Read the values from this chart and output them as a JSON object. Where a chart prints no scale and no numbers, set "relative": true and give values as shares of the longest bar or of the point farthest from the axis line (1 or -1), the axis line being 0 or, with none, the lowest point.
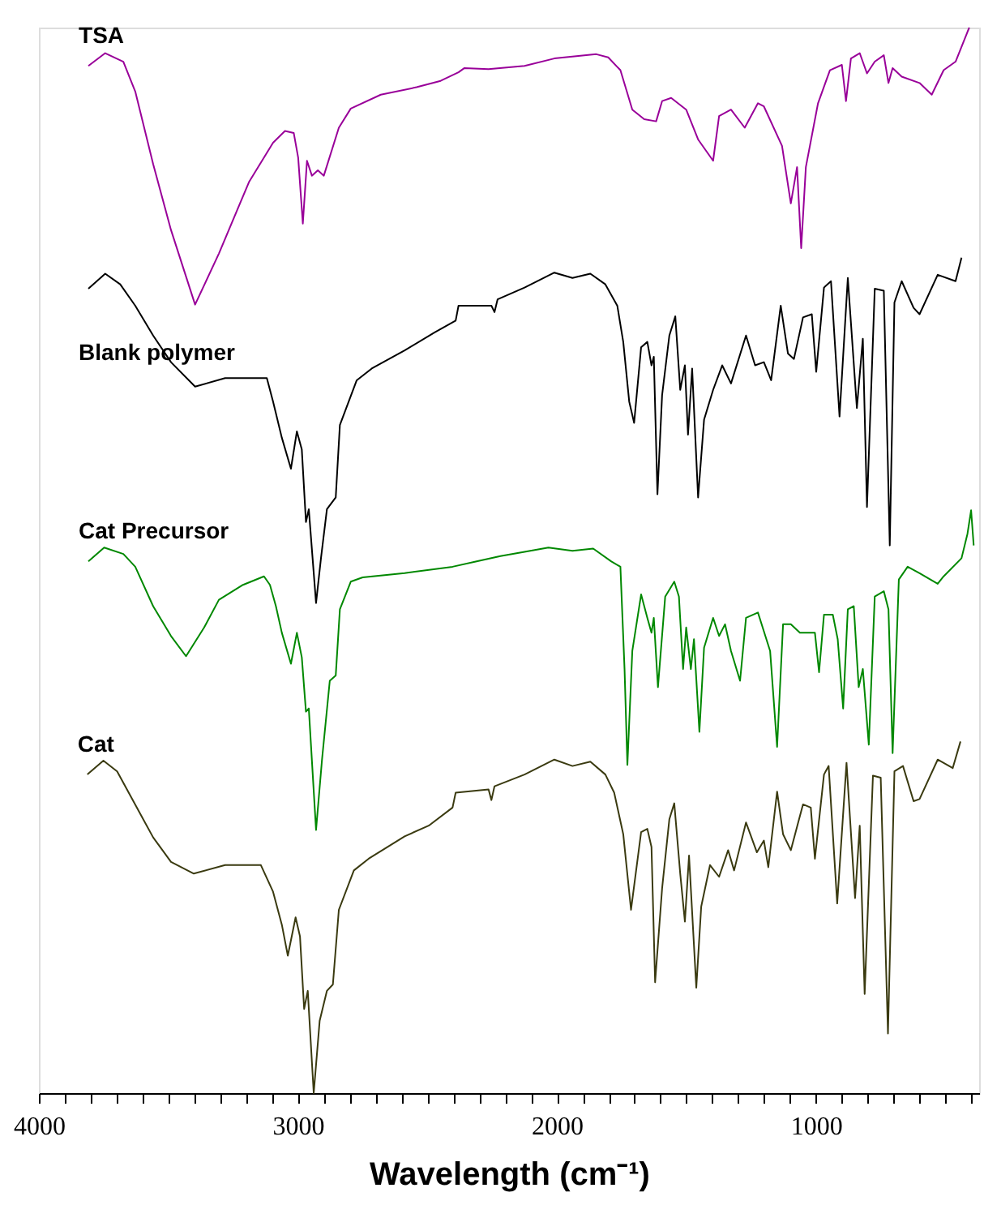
{
  "chart_data": {
    "type": "line",
    "relative": true,
    "xlabel": "Wavelength (cm⁻¹)",
    "xlim": [
      4000,
      370
    ],
    "xticks": [
      4000,
      {
        "value": 3900,
        "label": null
      },
      {
        "value": 3800,
        "label": null
      },
      {
        "value": 3700,
        "label": null
      },
      {
        "value": 3600,
        "label": null
      },
      {
        "value": 3500,
        "label": null
      },
      {
        "value": 3400,
        "label": null
      },
      {
        "value": 3300,
        "label": null
      },
      {
        "value": 3200,
        "label": null
      },
      {
        "value": 3100,
        "label": null
      },
      3000,
      {
        "value": 2900,
        "label": null
      },
      {
        "value": 2800,
        "label": null
      },
      {
        "value": 2700,
        "label": null
      },
      {
        "value": 2600,
        "label": null
      },
      {
        "value": 2500,
        "label": null
      },
      {
        "value": 2400,
        "label": null
      },
      {
        "value": 2300,
        "label": null
      },
      {
        "value": 2200,
        "label": null
      },
      {
        "value": 2100,
        "label": null
      },
      2000,
      {
        "value": 1900,
        "label": null
      },
      {
        "value": 1800,
        "label": null
      },
      {
        "value": 1700,
        "label": null
      },
      {
        "value": 1600,
        "label": null
      },
      {
        "value": 1500,
        "label": null
      },
      {
        "value": 1400,
        "label": null
      },
      {
        "value": 1300,
        "label": null
      },
      {
        "value": 1200,
        "label": null
      },
      {
        "value": 1100,
        "label": null
      },
      1000,
      {
        "value": 900,
        "label": null
      },
      {
        "value": 800,
        "label": null
      },
      {
        "value": 700,
        "label": null
      },
      {
        "value": 600,
        "label": null
      },
      {
        "value": 500,
        "label": null
      },
      {
        "value": 400,
        "label": null
      }
    ],
    "series": [
      {
        "name": "TSA",
        "color": "#990099",
        "x": [
          3809,
          3744,
          3674,
          3628,
          3559,
          3490,
          3397,
          3305,
          3189,
          3096,
          3050,
          3016,
          2999,
          2981,
          2965,
          2946,
          2923,
          2900,
          2842,
          2796,
          2680,
          2542,
          2449,
          2380,
          2357,
          2264,
          2125,
          2010,
          1848,
          1802,
          1755,
          1709,
          1663,
          1617,
          1594,
          1559,
          1501,
          1455,
          1397,
          1374,
          1328,
          1275,
          1224,
          1201,
          1131,
          1097,
          1073,
          1057,
          1039,
          992,
          946,
          900,
          884,
          865,
          831,
          803,
          773,
          738,
          720,
          704,
          669,
          600,
          553,
          507,
          461,
          415,
          408
        ],
        "values": [
          0.964,
          0.976,
          0.968,
          0.94,
          0.872,
          0.81,
          0.74,
          0.788,
          0.855,
          0.892,
          0.903,
          0.901,
          0.878,
          0.816,
          0.875,
          0.861,
          0.866,
          0.861,
          0.906,
          0.924,
          0.937,
          0.944,
          0.95,
          0.958,
          0.962,
          0.961,
          0.964,
          0.971,
          0.975,
          0.972,
          0.96,
          0.923,
          0.914,
          0.912,
          0.931,
          0.934,
          0.923,
          0.895,
          0.875,
          0.917,
          0.923,
          0.906,
          0.929,
          0.926,
          0.889,
          0.835,
          0.869,
          0.793,
          0.869,
          0.929,
          0.96,
          0.965,
          0.931,
          0.971,
          0.976,
          0.957,
          0.968,
          0.974,
          0.948,
          0.962,
          0.954,
          0.948,
          0.937,
          0.96,
          0.968,
          0.996,
          1.0
        ]
      },
      {
        "name": "Blank polymer",
        "color": "#000000",
        "x": [
          3809,
          3744,
          3686,
          3628,
          3559,
          3490,
          3397,
          3281,
          3120,
          3096,
          3062,
          3027,
          3004,
          2985,
          2969,
          2958,
          2930,
          2911,
          2888,
          2854,
          2838,
          2773,
          2715,
          2588,
          2472,
          2391,
          2380,
          2253,
          2241,
          2229,
          2125,
          2010,
          1940,
          1871,
          1813,
          1767,
          1744,
          1721,
          1702,
          1675,
          1651,
          1635,
          1626,
          1612,
          1594,
          1566,
          1543,
          1524,
          1506,
          1494,
          1478,
          1455,
          1432,
          1397,
          1362,
          1328,
          1270,
          1235,
          1201,
          1173,
          1136,
          1108,
          1085,
          1050,
          1016,
          999,
          969,
          942,
          909,
          877,
          842,
          819,
          803,
          773,
          738,
          715,
          697,
          669,
          623,
          600,
          530,
          461,
          438
        ],
        "values": [
          0.755,
          0.769,
          0.759,
          0.739,
          0.711,
          0.686,
          0.663,
          0.671,
          0.671,
          0.649,
          0.615,
          0.586,
          0.621,
          0.604,
          0.536,
          0.548,
          0.46,
          0.502,
          0.548,
          0.559,
          0.627,
          0.669,
          0.68,
          0.697,
          0.714,
          0.725,
          0.739,
          0.739,
          0.733,
          0.745,
          0.756,
          0.77,
          0.765,
          0.769,
          0.759,
          0.739,
          0.705,
          0.649,
          0.629,
          0.7,
          0.705,
          0.683,
          0.691,
          0.562,
          0.655,
          0.711,
          0.729,
          0.66,
          0.683,
          0.618,
          0.68,
          0.559,
          0.632,
          0.66,
          0.683,
          0.666,
          0.711,
          0.683,
          0.686,
          0.669,
          0.739,
          0.694,
          0.689,
          0.728,
          0.731,
          0.677,
          0.756,
          0.762,
          0.635,
          0.765,
          0.643,
          0.708,
          0.55,
          0.755,
          0.753,
          0.514,
          0.742,
          0.762,
          0.737,
          0.731,
          0.768,
          0.762,
          0.784
        ]
      },
      {
        "name": "Cat Precursor",
        "color": "#008800",
        "x": [
          3809,
          3748,
          3674,
          3628,
          3559,
          3490,
          3432,
          3362,
          3305,
          3212,
          3131,
          3108,
          3085,
          3062,
          3027,
          3004,
          2985,
          2969,
          2958,
          2930,
          2907,
          2877,
          2854,
          2838,
          2796,
          2750,
          2588,
          2403,
          2310,
          2218,
          2125,
          2033,
          1940,
          1860,
          1790,
          1755,
          1739,
          1728,
          1709,
          1675,
          1651,
          1635,
          1626,
          1610,
          1582,
          1547,
          1529,
          1513,
          1501,
          1483,
          1471,
          1450,
          1432,
          1397,
          1374,
          1351,
          1328,
          1293,
          1270,
          1224,
          1177,
          1150,
          1127,
          1097,
          1062,
          1004,
          988,
          969,
          935,
          916,
          895,
          877,
          854,
          835,
          819,
          796,
          773,
          738,
          720,
          704,
          680,
          646,
          600,
          530,
          507,
          438,
          415,
          401,
          391
        ],
        "values": [
          0.499,
          0.512,
          0.506,
          0.494,
          0.457,
          0.429,
          0.41,
          0.437,
          0.463,
          0.477,
          0.485,
          0.477,
          0.457,
          0.432,
          0.403,
          0.432,
          0.409,
          0.358,
          0.361,
          0.247,
          0.313,
          0.387,
          0.392,
          0.454,
          0.48,
          0.484,
          0.488,
          0.494,
          0.499,
          0.504,
          0.508,
          0.512,
          0.509,
          0.511,
          0.499,
          0.494,
          0.398,
          0.308,
          0.415,
          0.468,
          0.446,
          0.432,
          0.446,
          0.381,
          0.466,
          0.48,
          0.466,
          0.398,
          0.437,
          0.398,
          0.426,
          0.339,
          0.418,
          0.446,
          0.429,
          0.44,
          0.415,
          0.387,
          0.446,
          0.451,
          0.415,
          0.325,
          0.44,
          0.44,
          0.432,
          0.432,
          0.395,
          0.449,
          0.449,
          0.426,
          0.361,
          0.454,
          0.457,
          0.381,
          0.398,
          0.327,
          0.466,
          0.471,
          0.454,
          0.319,
          0.482,
          0.494,
          0.488,
          0.478,
          0.485,
          0.502,
          0.525,
          0.547,
          0.514
        ]
      },
      {
        "name": "Cat",
        "color": "#3a3a10",
        "x": [
          3813,
          3751,
          3698,
          3640,
          3559,
          3490,
          3402,
          3281,
          3143,
          3096,
          3062,
          3039,
          3009,
          2992,
          2976,
          2962,
          2939,
          2916,
          2888,
          2865,
          2842,
          2784,
          2727,
          2588,
          2495,
          2403,
          2391,
          2264,
          2253,
          2241,
          2125,
          2010,
          1940,
          1871,
          1813,
          1779,
          1744,
          1714,
          1675,
          1651,
          1635,
          1621,
          1594,
          1566,
          1547,
          1524,
          1506,
          1490,
          1462,
          1443,
          1409,
          1374,
          1339,
          1316,
          1270,
          1228,
          1201,
          1184,
          1150,
          1127,
          1097,
          1050,
          1020,
          1004,
          969,
          951,
          918,
          882,
          849,
          831,
          812,
          780,
          750,
          722,
          697,
          664,
          623,
          600,
          530,
          472,
          442
        ],
        "values": [
          0.299,
          0.312,
          0.302,
          0.276,
          0.24,
          0.217,
          0.206,
          0.214,
          0.214,
          0.189,
          0.158,
          0.129,
          0.165,
          0.147,
          0.079,
          0.096,
          0.0,
          0.068,
          0.096,
          0.102,
          0.172,
          0.209,
          0.22,
          0.241,
          0.251,
          0.268,
          0.282,
          0.285,
          0.275,
          0.288,
          0.299,
          0.313,
          0.307,
          0.311,
          0.299,
          0.282,
          0.243,
          0.172,
          0.245,
          0.248,
          0.231,
          0.104,
          0.192,
          0.257,
          0.272,
          0.206,
          0.161,
          0.223,
          0.099,
          0.175,
          0.214,
          0.203,
          0.228,
          0.209,
          0.254,
          0.226,
          0.237,
          0.212,
          0.283,
          0.243,
          0.228,
          0.271,
          0.268,
          0.22,
          0.299,
          0.307,
          0.178,
          0.31,
          0.183,
          0.251,
          0.093,
          0.298,
          0.296,
          0.056,
          0.302,
          0.307,
          0.274,
          0.276,
          0.313,
          0.305,
          0.33
        ]
      }
    ]
  }
}
